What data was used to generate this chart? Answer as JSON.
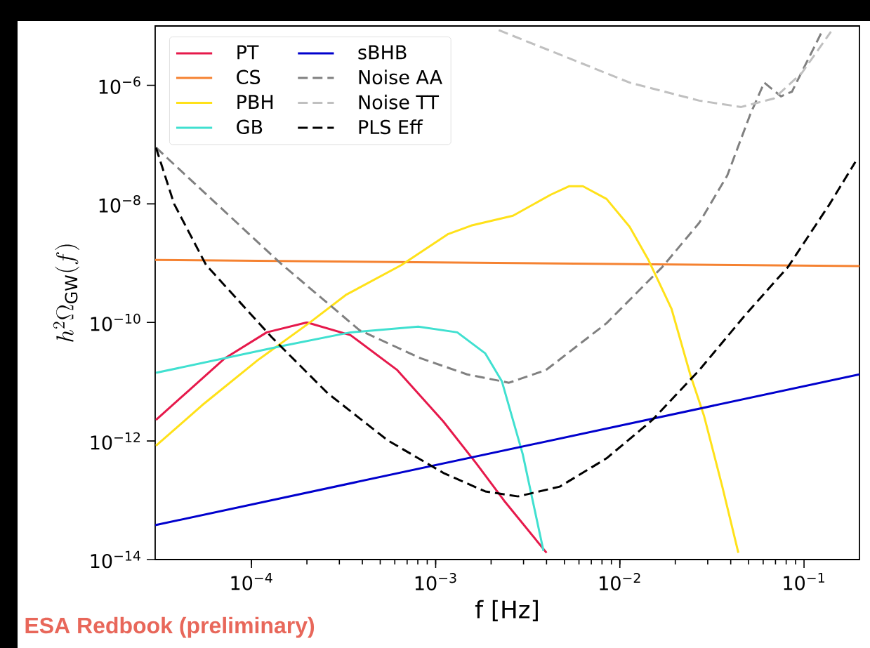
{
  "chart_data": {
    "type": "line",
    "xlabel": "f [Hz]",
    "ylabel": "h^2\\Omega_{\\mathrm{GW}}(f)",
    "log": "xy",
    "legend": "top left",
    "xlim": [
      3e-05,
      0.2
    ],
    "ylim": [
      1e-14,
      1e-05
    ],
    "xticks": [
      {
        "value": 0.0001,
        "label": "10$^{−4}$"
      },
      {
        "value": 0.001,
        "label": "10$^{−3}$"
      },
      {
        "value": 0.01,
        "label": "10$^{−2}$"
      },
      {
        "value": 0.1,
        "label": "10$^{−1}$"
      }
    ],
    "yticks": [
      {
        "value": 1e-14,
        "label": "10$^{−14}$"
      },
      {
        "value": 1e-12,
        "label": "10$^{−12}$"
      },
      {
        "value": 1e-10,
        "label": "10$^{−10}$"
      },
      {
        "value": 1e-08,
        "label": "10$^{−8}$"
      },
      {
        "value": 1e-06,
        "label": "10$^{−6}$"
      }
    ],
    "series": [
      {
        "name": "PT",
        "color": "#e6194b",
        "line_style": "solid",
        "x": [
          3.03e-05,
          4.52e-05,
          7.18e-05,
          0.000121,
          0.0002,
          0.000345,
          0.000619,
          0.0011,
          0.00166,
          0.00235,
          0.004
        ],
        "values": [
          2.27e-12,
          6.9e-12,
          2.49e-11,
          6.8e-11,
          1e-10,
          6.1e-11,
          1.57e-11,
          2.14e-12,
          4.2e-13,
          9.9e-14,
          1.3e-14
        ]
      },
      {
        "name": "CS",
        "color": "#f58231",
        "line_style": "solid",
        "x": [
          3e-05,
          0.2
        ],
        "values": [
          1.13e-09,
          8.9e-10
        ]
      },
      {
        "name": "PBH",
        "color": "#ffe119",
        "line_style": "solid",
        "x": [
          3.03e-05,
          5.39e-05,
          0.000108,
          0.000205,
          0.000325,
          0.000652,
          0.00117,
          0.00156,
          0.00263,
          0.00422,
          0.00529,
          0.0063,
          0.00847,
          0.0113,
          0.0143,
          0.0191,
          0.0241,
          0.0287,
          0.036,
          0.044
        ],
        "values": [
          8.3e-13,
          4e-12,
          2.3e-11,
          9.7e-11,
          2.9e-10,
          9.3e-10,
          3.1e-09,
          4.3e-09,
          6.3e-09,
          1.43e-08,
          1.98e-08,
          1.98e-08,
          1.21e-08,
          4.1e-09,
          1.13e-09,
          1.68e-10,
          1.33e-11,
          2.6e-12,
          1.7e-13,
          1.3e-14
        ]
      },
      {
        "name": "GB",
        "color": "#40e0d0",
        "line_style": "solid",
        "x": [
          3.03e-05,
          0.000144,
          0.000345,
          0.000804,
          0.00131,
          0.00186,
          0.00229,
          0.00297,
          0.00385
        ],
        "values": [
          1.41e-11,
          3.96e-11,
          6.8e-11,
          8.5e-11,
          6.8e-11,
          3e-11,
          1.01e-11,
          6e-13,
          1.4e-14
        ]
      },
      {
        "name": "sBHB",
        "color": "#0000cd",
        "line_style": "solid",
        "x": [
          3e-05,
          0.2
        ],
        "values": [
          3.8e-14,
          1.33e-11
        ]
      },
      {
        "name": "Noise AA",
        "color": "#808080",
        "line_style": "dashed",
        "x": [
          3.03e-05,
          0.000144,
          0.000386,
          0.000826,
          0.00148,
          0.0025,
          0.00397,
          0.00847,
          0.017,
          0.027,
          0.0383,
          0.051,
          0.0608,
          0.075,
          0.086,
          0.125
        ],
        "values": [
          8.9e-08,
          9.9e-10,
          7.4e-11,
          2.5e-11,
          1.33e-11,
          9.6e-12,
          1.57e-11,
          9.7e-11,
          8.6e-10,
          4.8e-09,
          3e-08,
          3.2e-07,
          1.11e-06,
          6.5e-07,
          7.8e-07,
          8e-06
        ]
      },
      {
        "name": "Noise TT",
        "color": "#c0c0c0",
        "line_style": "dashed",
        "x": [
          0.0022,
          0.00472,
          0.0113,
          0.027,
          0.0456,
          0.0687,
          0.0975,
          0.14
        ],
        "values": [
          8.5e-06,
          3.3e-06,
          1.11e-06,
          5.5e-07,
          4.3e-07,
          6e-07,
          1.63e-06,
          8e-06
        ]
      },
      {
        "name": "PLS Eff",
        "color": "#000000",
        "line_style": "dashed",
        "x": [
          3.03e-05,
          3.8e-05,
          5.67e-05,
          0.000129,
          0.000259,
          0.000548,
          0.0011,
          0.00186,
          0.0028,
          0.00472,
          0.00847,
          0.0151,
          0.027,
          0.0485,
          0.0818,
          0.138,
          0.19
        ],
        "values": [
          8.9e-08,
          1e-08,
          9.3e-10,
          5.6e-11,
          6.4e-12,
          1.03e-12,
          2.9e-13,
          1.41e-13,
          1.16e-13,
          1.7e-13,
          5.1e-13,
          2.3e-12,
          1.57e-11,
          1.39e-10,
          8.6e-10,
          1e-08,
          5.1e-08
        ]
      }
    ],
    "annotations": [
      "ESA Redbook (preliminary)"
    ]
  }
}
